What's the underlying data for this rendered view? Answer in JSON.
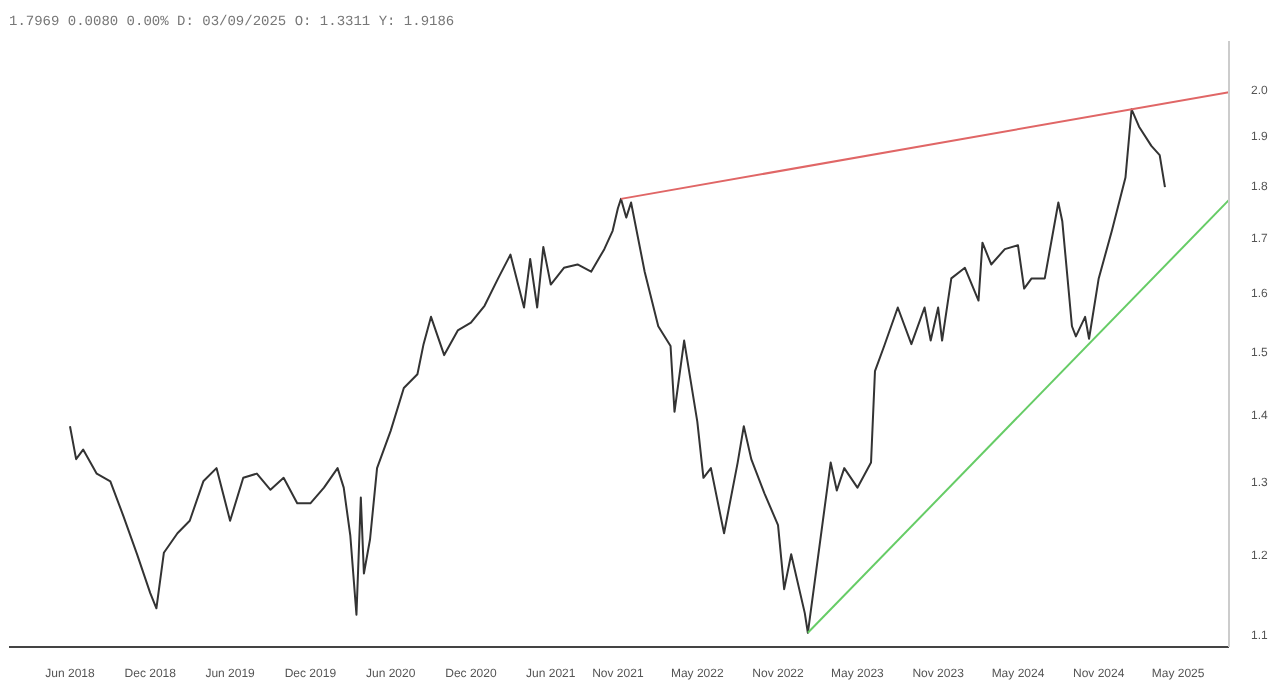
{
  "chart_data": {
    "type": "line",
    "title": "1.7969 0.0080 0.00% D: 03/09/2025 O: 1.3311 Y: 1.9186",
    "log": "y",
    "grid": false,
    "xlim": [
      "2018-01-13",
      "2025-08-25"
    ],
    "ylim": [
      1.084,
      2.107
    ],
    "xticks": [
      {
        "value": "2018-06-01",
        "label": "Jun 2018"
      },
      {
        "value": "2018-12-01",
        "label": "Dec 2018"
      },
      {
        "value": "2019-06-01",
        "label": "Jun 2019"
      },
      {
        "value": "2019-12-01",
        "label": "Dec 2019"
      },
      {
        "value": "2020-06-01",
        "label": "Jun 2020"
      },
      {
        "value": "2020-12-01",
        "label": "Dec 2020"
      },
      {
        "value": "2021-06-01",
        "label": "Jun 2021"
      },
      {
        "value": "2021-11-01",
        "label": "Nov 2021"
      },
      {
        "value": "2022-05-01",
        "label": "May 2022"
      },
      {
        "value": "2022-11-01",
        "label": "Nov 2022"
      },
      {
        "value": "2023-05-01",
        "label": "May 2023"
      },
      {
        "value": "2023-11-01",
        "label": "Nov 2023"
      },
      {
        "value": "2024-05-01",
        "label": "May 2024"
      },
      {
        "value": "2024-11-01",
        "label": "Nov 2024"
      },
      {
        "value": "2025-05-01",
        "label": "May 2025"
      }
    ],
    "yticks": [
      {
        "value": 1.1,
        "label": "1.1"
      },
      {
        "value": 1.2,
        "label": "1.2"
      },
      {
        "value": 1.3,
        "label": "1.3"
      },
      {
        "value": 1.4,
        "label": "1.4"
      },
      {
        "value": 1.5,
        "label": "1.5"
      },
      {
        "value": 1.6,
        "label": "1.6"
      },
      {
        "value": 1.7,
        "label": "1.7"
      },
      {
        "value": 1.8,
        "label": "1.8"
      },
      {
        "value": 1.9,
        "label": "1.9"
      },
      {
        "value": 2.0,
        "label": "2.0"
      }
    ],
    "series": [
      {
        "color": "#333333",
        "x": [
          "2018-06-01",
          "2018-06-15",
          "2018-07-01",
          "2018-08-01",
          "2018-09-01",
          "2018-10-01",
          "2018-11-01",
          "2018-12-01",
          "2018-12-15",
          "2019-01-01",
          "2019-02-01",
          "2019-03-01",
          "2019-04-01",
          "2019-05-01",
          "2019-06-01",
          "2019-07-01",
          "2019-08-01",
          "2019-09-01",
          "2019-10-01",
          "2019-11-01",
          "2019-12-01",
          "2020-01-01",
          "2020-02-01",
          "2020-02-15",
          "2020-03-01",
          "2020-03-15",
          "2020-03-25",
          "2020-04-01",
          "2020-04-15",
          "2020-05-01",
          "2020-06-01",
          "2020-07-01",
          "2020-08-01",
          "2020-08-15",
          "2020-09-01",
          "2020-10-01",
          "2020-11-01",
          "2020-12-01",
          "2021-01-01",
          "2021-02-01",
          "2021-03-01",
          "2021-04-01",
          "2021-04-15",
          "2021-05-01",
          "2021-05-15",
          "2021-06-01",
          "2021-07-01",
          "2021-08-01",
          "2021-09-01",
          "2021-10-01",
          "2021-10-20",
          "2021-11-01",
          "2021-11-08",
          "2021-11-20",
          "2021-12-01",
          "2022-01-01",
          "2022-02-01",
          "2022-03-01",
          "2022-03-10",
          "2022-04-01",
          "2022-05-01",
          "2022-05-15",
          "2022-06-01",
          "2022-07-01",
          "2022-08-01",
          "2022-08-15",
          "2022-09-01",
          "2022-10-01",
          "2022-11-01",
          "2022-11-15",
          "2022-12-01",
          "2023-01-01",
          "2023-01-08",
          "2023-02-01",
          "2023-03-01",
          "2023-03-15",
          "2023-04-01",
          "2023-05-01",
          "2023-06-01",
          "2023-06-10",
          "2023-07-01",
          "2023-08-01",
          "2023-09-01",
          "2023-10-01",
          "2023-10-15",
          "2023-11-01",
          "2023-11-10",
          "2023-12-01",
          "2024-01-01",
          "2024-02-01",
          "2024-02-10",
          "2024-03-01",
          "2024-04-01",
          "2024-05-01",
          "2024-05-15",
          "2024-06-01",
          "2024-07-01",
          "2024-08-01",
          "2024-08-10",
          "2024-09-01",
          "2024-09-10",
          "2024-10-01",
          "2024-10-10",
          "2024-11-01",
          "2024-12-01",
          "2025-01-01",
          "2025-01-15",
          "2025-02-01",
          "2025-03-01",
          "2025-03-20",
          "2025-04-01"
        ],
        "values": [
          1.381,
          1.332,
          1.346,
          1.311,
          1.3,
          1.251,
          1.2,
          1.15,
          1.131,
          1.202,
          1.228,
          1.245,
          1.3,
          1.319,
          1.245,
          1.305,
          1.311,
          1.288,
          1.305,
          1.269,
          1.269,
          1.291,
          1.319,
          1.291,
          1.225,
          1.123,
          1.277,
          1.175,
          1.22,
          1.319,
          1.374,
          1.44,
          1.462,
          1.511,
          1.557,
          1.493,
          1.534,
          1.547,
          1.576,
          1.624,
          1.667,
          1.573,
          1.659,
          1.573,
          1.681,
          1.613,
          1.643,
          1.649,
          1.636,
          1.677,
          1.711,
          1.754,
          1.772,
          1.736,
          1.765,
          1.636,
          1.541,
          1.508,
          1.403,
          1.517,
          1.388,
          1.305,
          1.319,
          1.228,
          1.327,
          1.381,
          1.332,
          1.283,
          1.239,
          1.155,
          1.2,
          1.125,
          1.101,
          1.2,
          1.327,
          1.287,
          1.319,
          1.291,
          1.327,
          1.467,
          1.508,
          1.573,
          1.511,
          1.573,
          1.517,
          1.573,
          1.517,
          1.624,
          1.643,
          1.585,
          1.689,
          1.649,
          1.677,
          1.684,
          1.606,
          1.624,
          1.624,
          1.765,
          1.729,
          1.541,
          1.524,
          1.557,
          1.52,
          1.624,
          1.711,
          1.814,
          1.955,
          1.918,
          1.878,
          1.859,
          1.795
        ]
      },
      {
        "type": "line",
        "color": "#e06666",
        "x": [
          "2021-11-08",
          "2025-08-25"
        ],
        "values": [
          1.772,
          1.992
        ]
      },
      {
        "type": "line",
        "color": "#66cc66",
        "x": [
          "2023-01-08",
          "2025-08-25"
        ],
        "values": [
          1.101,
          1.77
        ]
      }
    ]
  }
}
